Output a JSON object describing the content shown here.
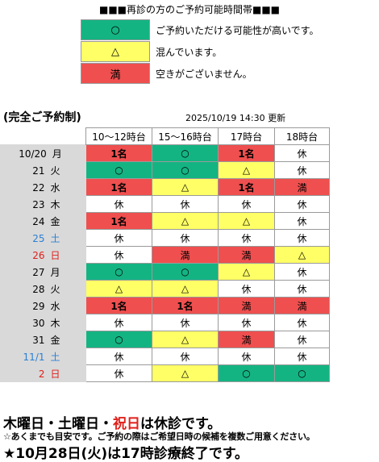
{
  "legend": {
    "title": "■■■再診の方のご予約可能時間帯■■■",
    "items": [
      {
        "symbol": "○",
        "text": "ご予約いただける可能性が高いです。",
        "color": "#14b482"
      },
      {
        "symbol": "△",
        "text": "混んでいます。",
        "color": "#ffff66"
      },
      {
        "symbol": "満",
        "text": "空きがございません。",
        "color": "#ef4f4f"
      }
    ]
  },
  "notice": "(完全ご予約制)",
  "updated": "2025/10/19 14:30 更新",
  "columns": [
    "10〜12時台",
    "15〜16時台",
    "17時台",
    "18時台"
  ],
  "rows": [
    {
      "date": "10/20",
      "weekday": "月",
      "tone": "normal",
      "slots": [
        [
          "1名",
          "red"
        ],
        [
          "○",
          "green"
        ],
        [
          "1名",
          "red"
        ],
        [
          "休",
          "white"
        ]
      ]
    },
    {
      "date": "21",
      "weekday": "火",
      "tone": "normal",
      "slots": [
        [
          "○",
          "green"
        ],
        [
          "○",
          "green"
        ],
        [
          "△",
          "yellow"
        ],
        [
          "休",
          "white"
        ]
      ]
    },
    {
      "date": "22",
      "weekday": "水",
      "tone": "normal",
      "slots": [
        [
          "1名",
          "red"
        ],
        [
          "△",
          "yellow"
        ],
        [
          "1名",
          "red"
        ],
        [
          "満",
          "red"
        ]
      ]
    },
    {
      "date": "23",
      "weekday": "木",
      "tone": "normal",
      "slots": [
        [
          "休",
          "white"
        ],
        [
          "休",
          "white"
        ],
        [
          "休",
          "white"
        ],
        [
          "休",
          "white"
        ]
      ]
    },
    {
      "date": "24",
      "weekday": "金",
      "tone": "normal",
      "slots": [
        [
          "1名",
          "red"
        ],
        [
          "△",
          "yellow"
        ],
        [
          "△",
          "yellow"
        ],
        [
          "休",
          "white"
        ]
      ]
    },
    {
      "date": "25",
      "weekday": "土",
      "tone": "blue",
      "slots": [
        [
          "休",
          "white"
        ],
        [
          "休",
          "white"
        ],
        [
          "休",
          "white"
        ],
        [
          "休",
          "white"
        ]
      ]
    },
    {
      "date": "26",
      "weekday": "日",
      "tone": "red",
      "slots": [
        [
          "休",
          "white"
        ],
        [
          "満",
          "red"
        ],
        [
          "満",
          "red"
        ],
        [
          "△",
          "yellow"
        ]
      ]
    },
    {
      "date": "27",
      "weekday": "月",
      "tone": "normal",
      "slots": [
        [
          "○",
          "green"
        ],
        [
          "○",
          "green"
        ],
        [
          "△",
          "yellow"
        ],
        [
          "休",
          "white"
        ]
      ]
    },
    {
      "date": "28",
      "weekday": "火",
      "tone": "normal",
      "slots": [
        [
          "△",
          "yellow"
        ],
        [
          "△",
          "yellow"
        ],
        [
          "休",
          "white"
        ],
        [
          "休",
          "white"
        ]
      ]
    },
    {
      "date": "29",
      "weekday": "水",
      "tone": "normal",
      "slots": [
        [
          "1名",
          "red"
        ],
        [
          "1名",
          "red"
        ],
        [
          "満",
          "red"
        ],
        [
          "満",
          "red"
        ]
      ]
    },
    {
      "date": "30",
      "weekday": "木",
      "tone": "normal",
      "slots": [
        [
          "休",
          "white"
        ],
        [
          "休",
          "white"
        ],
        [
          "休",
          "white"
        ],
        [
          "休",
          "white"
        ]
      ]
    },
    {
      "date": "31",
      "weekday": "金",
      "tone": "normal",
      "slots": [
        [
          "○",
          "green"
        ],
        [
          "△",
          "yellow"
        ],
        [
          "満",
          "red"
        ],
        [
          "休",
          "white"
        ]
      ]
    },
    {
      "date": "11/1",
      "weekday": "土",
      "tone": "blue",
      "slots": [
        [
          "休",
          "white"
        ],
        [
          "休",
          "white"
        ],
        [
          "休",
          "white"
        ],
        [
          "休",
          "white"
        ]
      ]
    },
    {
      "date": "2",
      "weekday": "日",
      "tone": "red",
      "slots": [
        [
          "休",
          "white"
        ],
        [
          "△",
          "yellow"
        ],
        [
          "○",
          "green"
        ],
        [
          "○",
          "green"
        ]
      ]
    }
  ],
  "footer": {
    "closed_prefix": "木曜日・土曜日・",
    "closed_holiday": "祝日",
    "closed_suffix": "は休診です。",
    "note": "☆あくまでも目安です。ご予約の際はご希望日時の候補を複数ご用意ください。",
    "special": "★10月28日(火)は17時診療終了です。"
  }
}
